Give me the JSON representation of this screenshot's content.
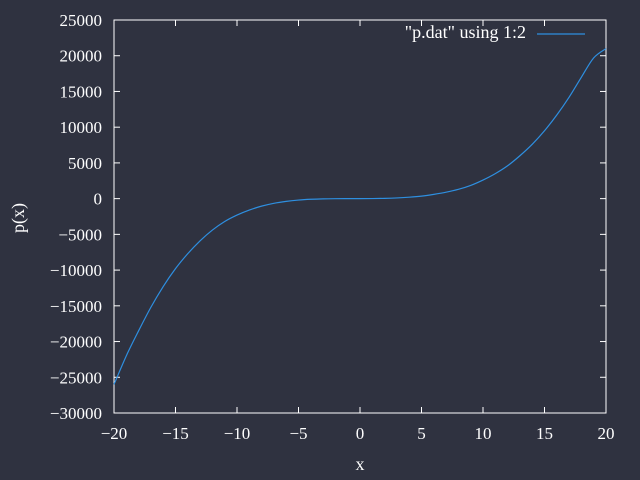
{
  "colors": {
    "background": "#2f3240",
    "axis": "#ffffff",
    "series": "#2e8fe0"
  },
  "chart_data": {
    "type": "line",
    "title": "",
    "xlabel": "x",
    "ylabel": "p(x)",
    "xlim": [
      -20,
      20
    ],
    "ylim": [
      -30000,
      25000
    ],
    "xticks": [
      -20,
      -15,
      -10,
      -5,
      0,
      5,
      10,
      15,
      20
    ],
    "xtick_labels": [
      "−20",
      "−15",
      "−10",
      "−5",
      "0",
      "5",
      "10",
      "15",
      "20"
    ],
    "yticks": [
      -30000,
      -25000,
      -20000,
      -15000,
      -10000,
      -5000,
      0,
      5000,
      10000,
      15000,
      20000,
      25000
    ],
    "ytick_labels": [
      "−30000",
      "−25000",
      "−20000",
      "−15000",
      "−10000",
      "−5000",
      "0",
      "5000",
      "10000",
      "15000",
      "20000",
      "25000"
    ],
    "grid": false,
    "legend_position": "top-right",
    "series": [
      {
        "name": "\"p.dat\" using 1:2",
        "color": "#2e8fe0",
        "x": [
          -20,
          -19,
          -18,
          -17,
          -16,
          -15,
          -14,
          -13,
          -12,
          -11,
          -10,
          -9,
          -8,
          -7,
          -6,
          -5,
          -4,
          -3,
          -2,
          -1,
          0,
          1,
          2,
          3,
          4,
          5,
          6,
          7,
          8,
          9,
          10,
          11,
          12,
          13,
          14,
          15,
          16,
          17,
          18,
          19,
          20
        ],
        "y": [
          -26000,
          -22000,
          -18500,
          -15200,
          -12300,
          -9800,
          -7700,
          -5900,
          -4400,
          -3200,
          -2300,
          -1600,
          -1050,
          -650,
          -380,
          -200,
          -90,
          -30,
          -5,
          0,
          0,
          10,
          40,
          100,
          200,
          350,
          600,
          900,
          1300,
          1850,
          2600,
          3500,
          4600,
          6000,
          7600,
          9500,
          11700,
          14200,
          17000,
          19700,
          21000
        ]
      }
    ]
  }
}
